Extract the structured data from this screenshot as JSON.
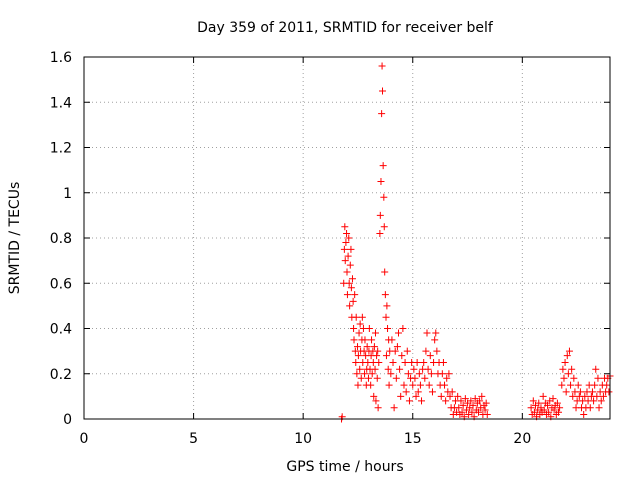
{
  "chart_data": {
    "type": "scatter",
    "title": "Day 359 of 2011, SRMTID for receiver belf",
    "xlabel": "GPS time / hours",
    "ylabel": "SRMTID / TECUs",
    "xlim": [
      0,
      24
    ],
    "ylim": [
      0,
      1.6
    ],
    "grid": true,
    "marker": "+",
    "color": "#ff0000",
    "x_ticks": [
      {
        "value": 0,
        "label": "0"
      },
      {
        "value": 5,
        "label": "5"
      },
      {
        "value": 10,
        "label": "10"
      },
      {
        "value": 15,
        "label": "15"
      },
      {
        "value": 20,
        "label": "20"
      }
    ],
    "y_ticks": [
      {
        "value": 0,
        "label": "0"
      },
      {
        "value": 0.2,
        "label": "0.2"
      },
      {
        "value": 0.4,
        "label": "0.4"
      },
      {
        "value": 0.6,
        "label": "0.6"
      },
      {
        "value": 0.8,
        "label": "0.8"
      },
      {
        "value": 1.0,
        "label": "1"
      },
      {
        "value": 1.2,
        "label": "1.2"
      },
      {
        "value": 1.4,
        "label": "1.4"
      },
      {
        "value": 1.6,
        "label": "1.6"
      }
    ],
    "series": [
      {
        "name": "SRMTID",
        "points": [
          [
            11.75,
            0.0
          ],
          [
            11.78,
            0.01
          ],
          [
            11.85,
            0.6
          ],
          [
            11.88,
            0.75
          ],
          [
            11.9,
            0.85
          ],
          [
            11.92,
            0.7
          ],
          [
            11.95,
            0.78
          ],
          [
            11.98,
            0.82
          ],
          [
            12.0,
            0.65
          ],
          [
            12.02,
            0.55
          ],
          [
            12.05,
            0.72
          ],
          [
            12.08,
            0.8
          ],
          [
            12.1,
            0.6
          ],
          [
            12.12,
            0.5
          ],
          [
            12.15,
            0.68
          ],
          [
            12.18,
            0.75
          ],
          [
            12.2,
            0.58
          ],
          [
            12.22,
            0.45
          ],
          [
            12.25,
            0.62
          ],
          [
            12.28,
            0.52
          ],
          [
            12.3,
            0.4
          ],
          [
            12.32,
            0.35
          ],
          [
            12.35,
            0.55
          ],
          [
            12.38,
            0.3
          ],
          [
            12.4,
            0.25
          ],
          [
            12.42,
            0.45
          ],
          [
            12.45,
            0.2
          ],
          [
            12.48,
            0.32
          ],
          [
            12.5,
            0.15
          ],
          [
            12.52,
            0.28
          ],
          [
            12.55,
            0.38
          ],
          [
            12.58,
            0.22
          ],
          [
            12.6,
            0.42
          ],
          [
            12.62,
            0.3
          ],
          [
            12.65,
            0.18
          ],
          [
            12.68,
            0.35
          ],
          [
            12.7,
            0.45
          ],
          [
            12.72,
            0.25
          ],
          [
            12.75,
            0.4
          ],
          [
            12.78,
            0.3
          ],
          [
            12.8,
            0.2
          ],
          [
            12.82,
            0.35
          ],
          [
            12.85,
            0.28
          ],
          [
            12.88,
            0.15
          ],
          [
            12.9,
            0.22
          ],
          [
            12.92,
            0.32
          ],
          [
            12.95,
            0.25
          ],
          [
            12.98,
            0.18
          ],
          [
            13.0,
            0.3
          ],
          [
            13.02,
            0.4
          ],
          [
            13.05,
            0.22
          ],
          [
            13.08,
            0.15
          ],
          [
            13.1,
            0.28
          ],
          [
            13.12,
            0.35
          ],
          [
            13.15,
            0.2
          ],
          [
            13.18,
            0.3
          ],
          [
            13.2,
            0.25
          ],
          [
            13.22,
            0.1
          ],
          [
            13.25,
            0.32
          ],
          [
            13.28,
            0.22
          ],
          [
            13.3,
            0.38
          ],
          [
            13.32,
            0.08
          ],
          [
            13.35,
            0.28
          ],
          [
            13.38,
            0.18
          ],
          [
            13.4,
            0.3
          ],
          [
            13.42,
            0.05
          ],
          [
            13.45,
            0.25
          ],
          [
            13.5,
            0.82
          ],
          [
            13.52,
            0.9
          ],
          [
            13.55,
            1.05
          ],
          [
            13.58,
            1.35
          ],
          [
            13.6,
            1.56
          ],
          [
            13.62,
            1.45
          ],
          [
            13.65,
            1.12
          ],
          [
            13.68,
            0.98
          ],
          [
            13.7,
            0.85
          ],
          [
            13.72,
            0.65
          ],
          [
            13.75,
            0.55
          ],
          [
            13.78,
            0.45
          ],
          [
            13.8,
            0.28
          ],
          [
            13.82,
            0.5
          ],
          [
            13.85,
            0.4
          ],
          [
            13.88,
            0.22
          ],
          [
            13.9,
            0.35
          ],
          [
            13.92,
            0.15
          ],
          [
            13.95,
            0.3
          ],
          [
            14.0,
            0.2
          ],
          [
            14.05,
            0.35
          ],
          [
            14.1,
            0.25
          ],
          [
            14.15,
            0.05
          ],
          [
            14.2,
            0.3
          ],
          [
            14.25,
            0.18
          ],
          [
            14.3,
            0.32
          ],
          [
            14.35,
            0.38
          ],
          [
            14.4,
            0.22
          ],
          [
            14.45,
            0.1
          ],
          [
            14.5,
            0.28
          ],
          [
            14.55,
            0.4
          ],
          [
            14.6,
            0.15
          ],
          [
            14.65,
            0.25
          ],
          [
            14.7,
            0.12
          ],
          [
            14.75,
            0.3
          ],
          [
            14.8,
            0.2
          ],
          [
            14.85,
            0.08
          ],
          [
            14.9,
            0.18
          ],
          [
            14.95,
            0.25
          ],
          [
            15.0,
            0.15
          ],
          [
            15.05,
            0.22
          ],
          [
            15.1,
            0.18
          ],
          [
            15.15,
            0.1
          ],
          [
            15.2,
            0.25
          ],
          [
            15.25,
            0.12
          ],
          [
            15.3,
            0.2
          ],
          [
            15.35,
            0.15
          ],
          [
            15.4,
            0.08
          ],
          [
            15.45,
            0.22
          ],
          [
            15.5,
            0.25
          ],
          [
            15.55,
            0.18
          ],
          [
            15.6,
            0.3
          ],
          [
            15.65,
            0.38
          ],
          [
            15.7,
            0.22
          ],
          [
            15.75,
            0.15
          ],
          [
            15.8,
            0.28
          ],
          [
            15.85,
            0.2
          ],
          [
            15.9,
            0.12
          ],
          [
            15.95,
            0.25
          ],
          [
            16.0,
            0.35
          ],
          [
            16.05,
            0.38
          ],
          [
            16.1,
            0.3
          ],
          [
            16.15,
            0.2
          ],
          [
            16.2,
            0.25
          ],
          [
            16.25,
            0.15
          ],
          [
            16.3,
            0.1
          ],
          [
            16.35,
            0.2
          ],
          [
            16.4,
            0.25
          ],
          [
            16.45,
            0.15
          ],
          [
            16.5,
            0.08
          ],
          [
            16.55,
            0.18
          ],
          [
            16.6,
            0.12
          ],
          [
            16.65,
            0.2
          ],
          [
            16.7,
            0.1
          ],
          [
            16.75,
            0.05
          ],
          [
            16.8,
            0.12
          ],
          [
            16.85,
            0.02
          ],
          [
            16.9,
            0.05
          ],
          [
            16.95,
            0.08
          ],
          [
            17.0,
            0.03
          ],
          [
            17.05,
            0.1
          ],
          [
            17.1,
            0.05
          ],
          [
            17.15,
            0.02
          ],
          [
            17.2,
            0.08
          ],
          [
            17.25,
            0.03
          ],
          [
            17.3,
            0.06
          ],
          [
            17.35,
            0.01
          ],
          [
            17.4,
            0.09
          ],
          [
            17.45,
            0.04
          ],
          [
            17.5,
            0.07
          ],
          [
            17.55,
            0.02
          ],
          [
            17.6,
            0.05
          ],
          [
            17.65,
            0.08
          ],
          [
            17.7,
            0.03
          ],
          [
            17.75,
            0.06
          ],
          [
            17.8,
            0.01
          ],
          [
            17.85,
            0.09
          ],
          [
            17.9,
            0.04
          ],
          [
            17.95,
            0.07
          ],
          [
            18.0,
            0.03
          ],
          [
            18.05,
            0.08
          ],
          [
            18.1,
            0.05
          ],
          [
            18.15,
            0.1
          ],
          [
            18.2,
            0.02
          ],
          [
            18.25,
            0.06
          ],
          [
            18.3,
            0.04
          ],
          [
            18.35,
            0.07
          ],
          [
            18.4,
            0.02
          ],
          [
            20.4,
            0.05
          ],
          [
            20.45,
            0.02
          ],
          [
            20.5,
            0.08
          ],
          [
            20.55,
            0.03
          ],
          [
            20.6,
            0.06
          ],
          [
            20.65,
            0.01
          ],
          [
            20.7,
            0.04
          ],
          [
            20.75,
            0.07
          ],
          [
            20.8,
            0.02
          ],
          [
            20.85,
            0.05
          ],
          [
            20.9,
            0.03
          ],
          [
            20.95,
            0.1
          ],
          [
            21.0,
            0.04
          ],
          [
            21.05,
            0.07
          ],
          [
            21.1,
            0.02
          ],
          [
            21.15,
            0.06
          ],
          [
            21.2,
            0.03
          ],
          [
            21.25,
            0.08
          ],
          [
            21.3,
            0.01
          ],
          [
            21.35,
            0.05
          ],
          [
            21.4,
            0.09
          ],
          [
            21.45,
            0.04
          ],
          [
            21.5,
            0.06
          ],
          [
            21.55,
            0.02
          ],
          [
            21.6,
            0.07
          ],
          [
            21.65,
            0.03
          ],
          [
            21.7,
            0.05
          ],
          [
            21.8,
            0.15
          ],
          [
            21.85,
            0.22
          ],
          [
            21.9,
            0.18
          ],
          [
            21.95,
            0.25
          ],
          [
            22.0,
            0.12
          ],
          [
            22.05,
            0.28
          ],
          [
            22.1,
            0.2
          ],
          [
            22.15,
            0.3
          ],
          [
            22.2,
            0.15
          ],
          [
            22.25,
            0.22
          ],
          [
            22.3,
            0.1
          ],
          [
            22.35,
            0.18
          ],
          [
            22.4,
            0.12
          ],
          [
            22.45,
            0.05
          ],
          [
            22.5,
            0.08
          ],
          [
            22.55,
            0.15
          ],
          [
            22.6,
            0.1
          ],
          [
            22.65,
            0.12
          ],
          [
            22.7,
            0.05
          ],
          [
            22.75,
            0.08
          ],
          [
            22.8,
            0.02
          ],
          [
            22.85,
            0.1
          ],
          [
            22.9,
            0.05
          ],
          [
            22.95,
            0.12
          ],
          [
            23.0,
            0.08
          ],
          [
            23.05,
            0.15
          ],
          [
            23.1,
            0.05
          ],
          [
            23.15,
            0.1
          ],
          [
            23.2,
            0.12
          ],
          [
            23.25,
            0.08
          ],
          [
            23.3,
            0.15
          ],
          [
            23.35,
            0.22
          ],
          [
            23.4,
            0.1
          ],
          [
            23.45,
            0.18
          ],
          [
            23.5,
            0.05
          ],
          [
            23.55,
            0.12
          ],
          [
            23.6,
            0.08
          ],
          [
            23.65,
            0.15
          ],
          [
            23.7,
            0.1
          ],
          [
            23.75,
            0.18
          ],
          [
            23.8,
            0.12
          ],
          [
            23.85,
            0.15
          ],
          [
            23.9,
            0.18
          ],
          [
            23.95,
            0.12
          ],
          [
            24.0,
            0.19
          ]
        ]
      }
    ]
  }
}
